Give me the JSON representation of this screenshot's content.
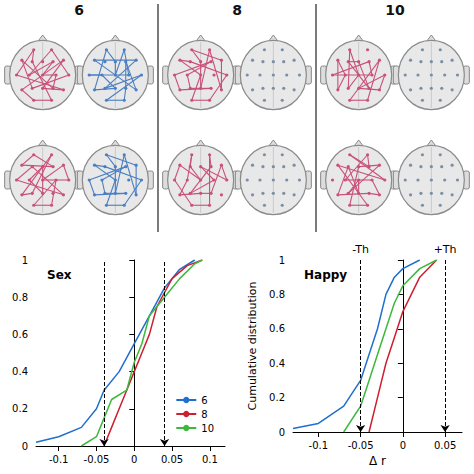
{
  "diagram": {
    "type": "diagram",
    "columns": [
      {
        "label": "6",
        "edge_colors": [
          "#c8507a",
          "#4a7fc1"
        ]
      },
      {
        "label": "8",
        "edge_colors": [
          "#c8507a",
          null
        ]
      },
      {
        "label": "10",
        "edge_colors": [
          "#c8507a",
          null
        ]
      }
    ]
  },
  "chart_data": [
    {
      "type": "line",
      "title": "Sex",
      "xlim": [
        -0.13,
        0.12
      ],
      "xticks": [
        -0.1,
        -0.05,
        0,
        0.05,
        0.1
      ],
      "ylim": [
        0,
        1
      ],
      "yticks": [
        0,
        0.2,
        0.4,
        0.6,
        0.8,
        1
      ],
      "legend": "lower right",
      "thresholds": [
        -0.037,
        0.037
      ],
      "series": [
        {
          "name": "6",
          "color": "#1f6fd1",
          "x": [
            -0.13,
            -0.1,
            -0.07,
            -0.05,
            -0.04,
            -0.02,
            0,
            0.02,
            0.04,
            0.06,
            0.08
          ],
          "values": [
            0.02,
            0.05,
            0.1,
            0.2,
            0.3,
            0.4,
            0.55,
            0.7,
            0.85,
            0.95,
            1
          ]
        },
        {
          "name": "8",
          "color": "#cc1f2f",
          "x": [
            -0.04,
            -0.03,
            -0.02,
            -0.01,
            0,
            0.01,
            0.02,
            0.03,
            0.05,
            0.07,
            0.09
          ],
          "values": [
            0,
            0.1,
            0.2,
            0.3,
            0.4,
            0.5,
            0.6,
            0.75,
            0.9,
            0.97,
            1
          ]
        },
        {
          "name": "10",
          "color": "#3cb83c",
          "x": [
            -0.07,
            -0.05,
            -0.04,
            -0.03,
            -0.01,
            0,
            0.01,
            0.02,
            0.04,
            0.06,
            0.08,
            0.09
          ],
          "values": [
            0,
            0.05,
            0.15,
            0.25,
            0.3,
            0.45,
            0.55,
            0.7,
            0.8,
            0.9,
            0.98,
            1
          ]
        }
      ]
    },
    {
      "type": "line",
      "title": "Happy",
      "x_label": "Δ r",
      "y_label": "Cumulative distribution",
      "xlim": [
        -0.13,
        0.07
      ],
      "xticks": [
        -0.1,
        -0.05,
        0,
        0.05
      ],
      "ylim": [
        0,
        1
      ],
      "yticks": [
        0,
        0.2,
        0.4,
        0.6,
        0.8,
        1
      ],
      "thresholds": [
        {
          "value": -0.05,
          "label": "-Th"
        },
        {
          "value": 0.05,
          "label": "+Th"
        }
      ],
      "series": [
        {
          "name": "6",
          "color": "#1f6fd1",
          "x": [
            -0.13,
            -0.1,
            -0.07,
            -0.05,
            -0.04,
            -0.03,
            -0.02,
            -0.01,
            0,
            0.02
          ],
          "values": [
            0.02,
            0.05,
            0.15,
            0.3,
            0.45,
            0.6,
            0.8,
            0.9,
            0.95,
            1
          ]
        },
        {
          "name": "8",
          "color": "#cc1f2f",
          "x": [
            -0.04,
            -0.03,
            -0.02,
            -0.01,
            0,
            0.01,
            0.02,
            0.04
          ],
          "values": [
            0,
            0.2,
            0.4,
            0.55,
            0.7,
            0.8,
            0.9,
            1
          ]
        },
        {
          "name": "10",
          "color": "#3cb83c",
          "x": [
            -0.07,
            -0.05,
            -0.04,
            -0.03,
            -0.02,
            -0.01,
            0,
            0.02,
            0.04
          ],
          "values": [
            0,
            0.15,
            0.3,
            0.45,
            0.6,
            0.75,
            0.85,
            0.95,
            1
          ]
        }
      ]
    }
  ]
}
